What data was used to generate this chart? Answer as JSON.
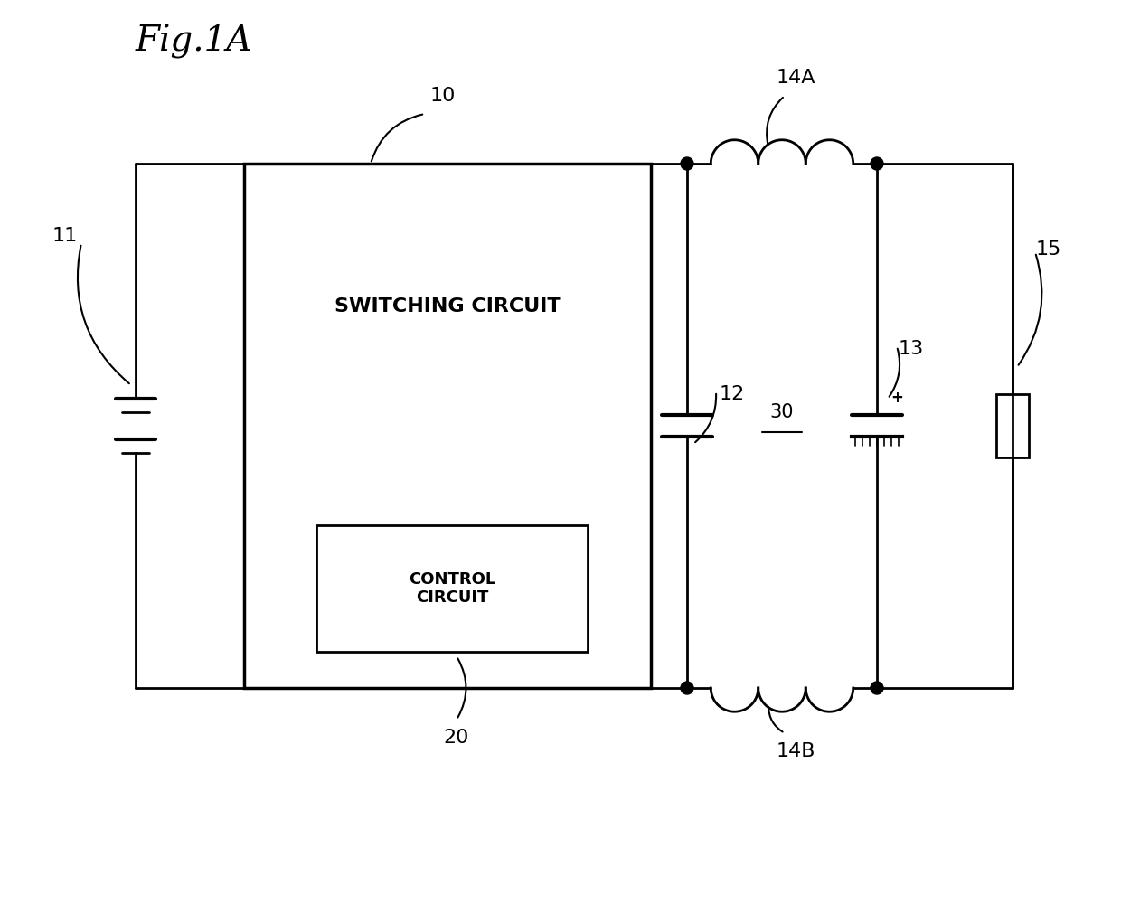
{
  "title": "Fig.1A",
  "bg_color": "#ffffff",
  "line_color": "#000000",
  "lw": 2.0,
  "labels": {
    "fig": "Fig.1A",
    "label_10": "10",
    "label_11": "11",
    "label_12": "12",
    "label_13": "13",
    "label_14A": "14A",
    "label_14B": "14B",
    "label_15": "15",
    "label_20": "20",
    "label_30": "30",
    "switching_circuit": "SWITCHING CIRCUIT",
    "control_circuit": "CONTROL\nCIRCUIT"
  }
}
